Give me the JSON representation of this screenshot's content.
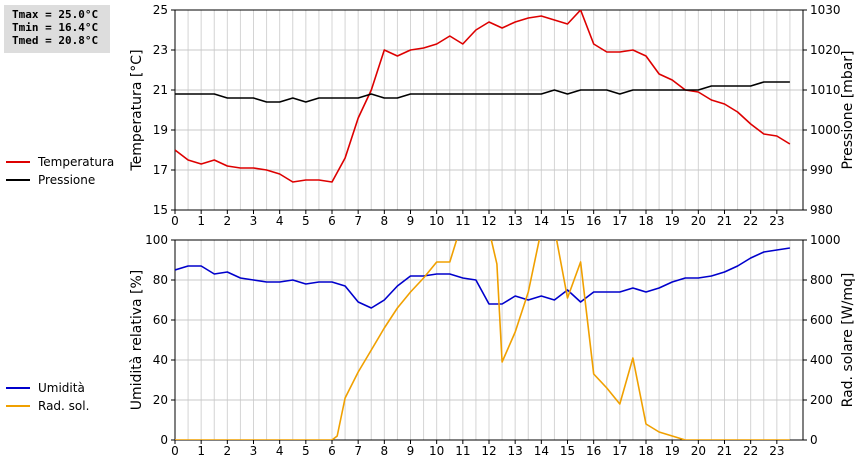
{
  "stats": {
    "tmax": "Tmax = 25.0°C",
    "tmin": "Tmin = 16.4°C",
    "tmed": "Tmed = 20.8°C"
  },
  "chart_data": [
    {
      "type": "line",
      "title": "",
      "xlabel": "",
      "ylabel": "Temperatura [°C]",
      "y2label": "Pressione [mbar]",
      "xlim": [
        0,
        24
      ],
      "ylim": [
        15,
        25
      ],
      "y2lim": [
        980,
        1030
      ],
      "x_ticks": [
        "0",
        "1",
        "2",
        "3",
        "4",
        "5",
        "6",
        "7",
        "8",
        "9",
        "10",
        "11",
        "12",
        "13",
        "14",
        "15",
        "16",
        "17",
        "18",
        "19",
        "20",
        "21",
        "22",
        "23"
      ],
      "y_ticks": [
        "15",
        "17",
        "19",
        "21",
        "23",
        "25"
      ],
      "y2_ticks": [
        "980",
        "990",
        "1000",
        "1010",
        "1020",
        "1030"
      ],
      "grid": true,
      "legend": "left",
      "series": [
        {
          "name": "Temperatura",
          "axis": "left",
          "color": "#dd0000",
          "x": [
            0,
            0.5,
            1,
            1.5,
            2,
            2.5,
            3,
            3.5,
            4,
            4.5,
            5,
            5.5,
            6,
            6.5,
            7,
            7.5,
            8,
            8.5,
            9,
            9.5,
            10,
            10.5,
            11,
            11.5,
            12,
            12.5,
            13,
            13.5,
            14,
            14.5,
            15,
            15.5,
            16,
            16.5,
            17,
            17.5,
            18,
            18.5,
            19,
            19.5,
            20,
            20.5,
            21,
            21.5,
            22,
            22.5,
            23,
            23.5
          ],
          "y": [
            18.0,
            17.5,
            17.3,
            17.5,
            17.2,
            17.1,
            17.1,
            17.0,
            16.8,
            16.4,
            16.5,
            16.5,
            16.4,
            17.6,
            19.6,
            21.0,
            23.0,
            22.7,
            23.0,
            23.1,
            23.3,
            23.7,
            23.3,
            24.0,
            24.4,
            24.1,
            24.4,
            24.6,
            24.7,
            24.5,
            24.3,
            25.0,
            23.3,
            22.9,
            22.9,
            23.0,
            22.7,
            21.8,
            21.5,
            21.0,
            20.9,
            20.5,
            20.3,
            19.9,
            19.3,
            18.8,
            18.7,
            18.3
          ]
        },
        {
          "name": "Pressione",
          "axis": "right",
          "color": "#000000",
          "x": [
            0,
            0.5,
            1,
            1.5,
            2,
            2.5,
            3,
            3.5,
            4,
            4.5,
            5,
            5.5,
            6,
            6.5,
            7,
            7.5,
            8,
            8.5,
            9,
            9.5,
            10,
            10.5,
            11,
            11.5,
            12,
            12.5,
            13,
            13.5,
            14,
            14.5,
            15,
            15.5,
            16,
            16.5,
            17,
            17.5,
            18,
            18.5,
            19,
            19.5,
            20,
            20.5,
            21,
            21.5,
            22,
            22.5,
            23,
            23.5
          ],
          "y": [
            1009,
            1009,
            1009,
            1009,
            1008,
            1008,
            1008,
            1007,
            1007,
            1008,
            1007,
            1008,
            1008,
            1008,
            1008,
            1009,
            1008,
            1008,
            1009,
            1009,
            1009,
            1009,
            1009,
            1009,
            1009,
            1009,
            1009,
            1009,
            1009,
            1010,
            1009,
            1010,
            1010,
            1010,
            1009,
            1010,
            1010,
            1010,
            1010,
            1010,
            1010,
            1011,
            1011,
            1011,
            1011,
            1012,
            1012,
            1012
          ]
        }
      ]
    },
    {
      "type": "line",
      "title": "",
      "xlabel": "",
      "ylabel": "Umidità relativa [%]",
      "y2label": "Rad. solare [W/mq]",
      "xlim": [
        0,
        24
      ],
      "ylim": [
        0,
        100
      ],
      "y2lim": [
        0,
        1000
      ],
      "x_ticks": [
        "0",
        "1",
        "2",
        "3",
        "4",
        "5",
        "6",
        "7",
        "8",
        "9",
        "10",
        "11",
        "12",
        "13",
        "14",
        "15",
        "16",
        "17",
        "18",
        "19",
        "20",
        "21",
        "22",
        "23"
      ],
      "y_ticks": [
        "0",
        "20",
        "40",
        "60",
        "80",
        "100"
      ],
      "y2_ticks": [
        "0",
        "200",
        "400",
        "600",
        "800",
        "1000"
      ],
      "grid": true,
      "legend": "left",
      "series": [
        {
          "name": "Umidità",
          "axis": "left",
          "color": "#0000cc",
          "x": [
            0,
            0.5,
            1,
            1.5,
            2,
            2.5,
            3,
            3.5,
            4,
            4.5,
            5,
            5.5,
            6,
            6.5,
            7,
            7.5,
            8,
            8.5,
            9,
            9.5,
            10,
            10.5,
            11,
            11.5,
            12,
            12.5,
            13,
            13.5,
            14,
            14.5,
            15,
            15.5,
            16,
            16.5,
            17,
            17.5,
            18,
            18.5,
            19,
            19.5,
            20,
            20.5,
            21,
            21.5,
            22,
            22.5,
            23,
            23.5
          ],
          "y": [
            85,
            87,
            87,
            83,
            84,
            81,
            80,
            79,
            79,
            80,
            78,
            79,
            79,
            77,
            69,
            66,
            70,
            77,
            82,
            82,
            83,
            83,
            81,
            80,
            68,
            68,
            72,
            70,
            72,
            70,
            75,
            69,
            74,
            74,
            74,
            76,
            74,
            76,
            79,
            81,
            81,
            82,
            84,
            87,
            91,
            94,
            95,
            96
          ]
        },
        {
          "name": "Rad. sol.",
          "axis": "right",
          "color": "#f0a000",
          "x": [
            0,
            0.5,
            1,
            1.5,
            2,
            2.5,
            3,
            3.5,
            4,
            4.5,
            5,
            5.5,
            6,
            6.2,
            6.5,
            7,
            7.5,
            8,
            8.5,
            9,
            9.5,
            10,
            10.5,
            11,
            11.5,
            12,
            12.3,
            12.5,
            13,
            13.5,
            14,
            14.3,
            14.5,
            15,
            15.5,
            16,
            16.5,
            17,
            17.5,
            18,
            18.5,
            19,
            19.5,
            20,
            20.5,
            21,
            21.5,
            22,
            22.5,
            23,
            23.5
          ],
          "y": [
            0,
            0,
            0,
            0,
            0,
            0,
            0,
            0,
            0,
            0,
            0,
            0,
            0,
            20,
            210,
            340,
            450,
            560,
            660,
            740,
            810,
            890,
            890,
            1100,
            1150,
            1050,
            880,
            390,
            540,
            740,
            1050,
            1120,
            1060,
            710,
            890,
            330,
            260,
            180,
            410,
            80,
            40,
            20,
            0,
            0,
            0,
            0,
            0,
            0,
            0,
            0,
            0
          ]
        }
      ]
    }
  ]
}
